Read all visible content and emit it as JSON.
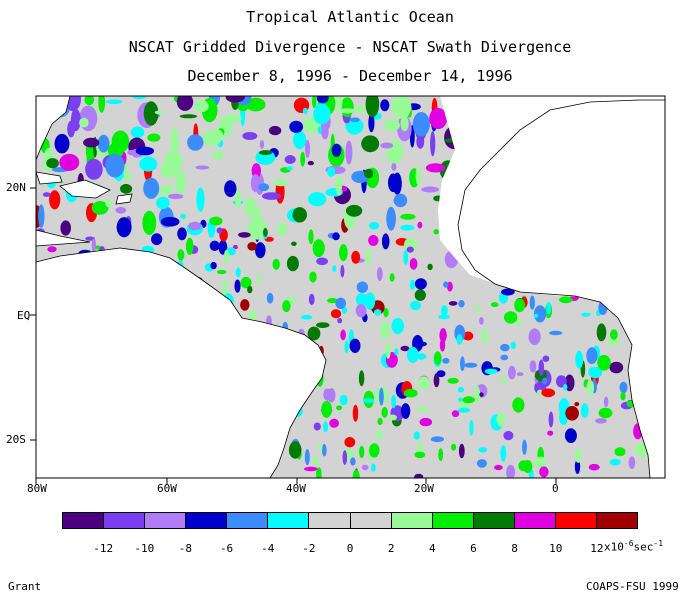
{
  "titles": {
    "line1": "Tropical Atlantic Ocean",
    "line2": "NSCAT Gridded Divergence - NSCAT Swath Divergence",
    "line3": "December 8, 1996 - December 14, 1996"
  },
  "axes": {
    "lon_labels": [
      "80W",
      "60W",
      "40W",
      "20W",
      "0"
    ],
    "lat_labels": [
      "20N",
      "EQ",
      "20S"
    ]
  },
  "colorbar": {
    "colors": [
      "#4b0082",
      "#7b3ff2",
      "#b07cf7",
      "#0000cd",
      "#3a8cff",
      "#00ffff",
      "#d3d3d3",
      "#d3d3d3",
      "#98fb98",
      "#00ee00",
      "#007a00",
      "#e000e0",
      "#ff0000",
      "#a00000"
    ],
    "labels": [
      "-12",
      "-10",
      "-8",
      "-6",
      "-4",
      "-2",
      "0",
      "2",
      "4",
      "6",
      "8",
      "10",
      "12"
    ],
    "units_prefix": "x10",
    "units_exponent": "-6",
    "units_suffix": "sec",
    "units_suffix_exponent": "-1"
  },
  "footer": {
    "left": "Grant",
    "right": "COAPS-FSU 1999"
  }
}
